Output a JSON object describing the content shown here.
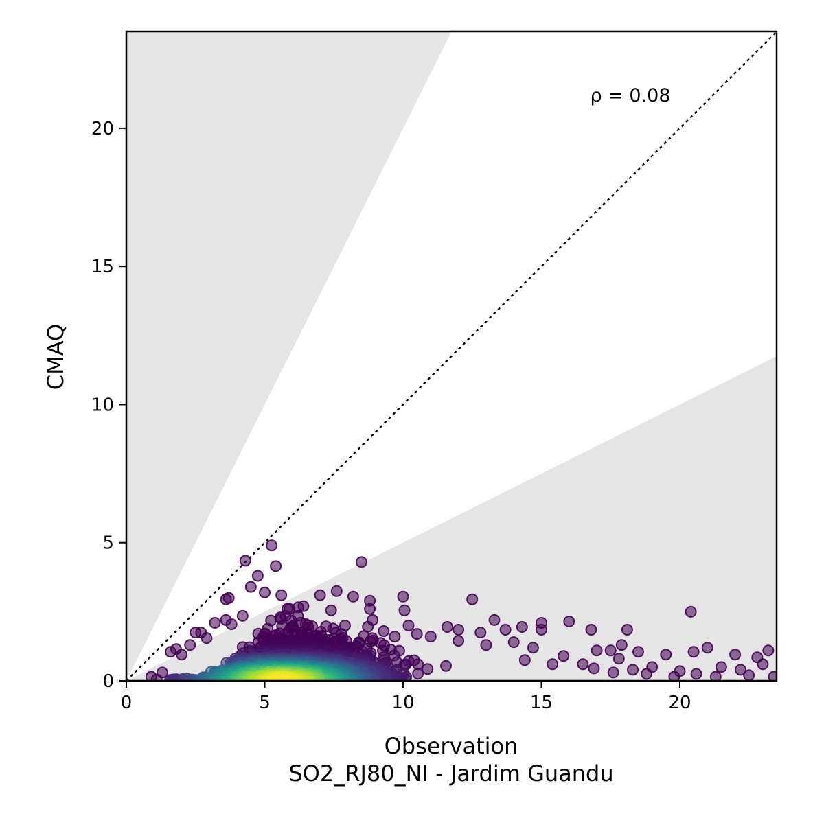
{
  "chart_data": {
    "type": "scatter",
    "xlabel": "Observation",
    "ylabel": "CMAQ",
    "subtitle": "SO2_RJ80_NI - Jardim Guandu",
    "annotation": "ρ = 0.08",
    "xlim": [
      0,
      23.5
    ],
    "ylim": [
      0,
      23.5
    ],
    "x_ticks": [
      0,
      5,
      10,
      15,
      20
    ],
    "y_ticks": [
      0,
      5,
      10,
      15,
      20
    ],
    "reference_line": {
      "style": "dotted",
      "slope": 1,
      "color": "#000000"
    },
    "shaded_regions": [
      {
        "description": "above factor-of-2 line",
        "slope": 2,
        "side": "above",
        "color": "#e5e5e5"
      },
      {
        "description": "below factor-of-0.5 line",
        "slope": 0.5,
        "side": "below",
        "color": "#e5e5e5"
      }
    ],
    "colormap": "viridis",
    "grid": false,
    "legend": "none",
    "points": [
      {
        "x": 4.3,
        "y": 4.35
      },
      {
        "x": 5.25,
        "y": 4.9
      },
      {
        "x": 5.4,
        "y": 4.15
      },
      {
        "x": 4.75,
        "y": 3.8
      },
      {
        "x": 8.5,
        "y": 4.3
      },
      {
        "x": 4.5,
        "y": 3.4
      },
      {
        "x": 5.0,
        "y": 3.2
      },
      {
        "x": 5.6,
        "y": 3.1
      },
      {
        "x": 3.6,
        "y": 2.95
      },
      {
        "x": 3.7,
        "y": 3.0
      },
      {
        "x": 7.0,
        "y": 3.1
      },
      {
        "x": 7.6,
        "y": 3.25
      },
      {
        "x": 8.2,
        "y": 3.05
      },
      {
        "x": 8.8,
        "y": 2.9
      },
      {
        "x": 10.0,
        "y": 3.05
      },
      {
        "x": 12.5,
        "y": 2.95
      },
      {
        "x": 10.05,
        "y": 2.55
      },
      {
        "x": 8.8,
        "y": 2.6
      },
      {
        "x": 6.4,
        "y": 2.7
      },
      {
        "x": 7.4,
        "y": 2.55
      },
      {
        "x": 3.2,
        "y": 2.1
      },
      {
        "x": 3.6,
        "y": 2.2
      },
      {
        "x": 2.7,
        "y": 1.75
      },
      {
        "x": 2.5,
        "y": 1.75
      },
      {
        "x": 1.8,
        "y": 1.15
      },
      {
        "x": 1.6,
        "y": 1.05
      },
      {
        "x": 9.3,
        "y": 1.8
      },
      {
        "x": 10.2,
        "y": 2.0
      },
      {
        "x": 11.6,
        "y": 1.95
      },
      {
        "x": 12.0,
        "y": 1.85
      },
      {
        "x": 12.8,
        "y": 1.75
      },
      {
        "x": 13.3,
        "y": 2.2
      },
      {
        "x": 13.7,
        "y": 1.85
      },
      {
        "x": 14.3,
        "y": 1.95
      },
      {
        "x": 15.0,
        "y": 2.1
      },
      {
        "x": 15.0,
        "y": 1.85
      },
      {
        "x": 16.0,
        "y": 2.15
      },
      {
        "x": 16.8,
        "y": 1.85
      },
      {
        "x": 18.1,
        "y": 1.85
      },
      {
        "x": 17.9,
        "y": 1.3
      },
      {
        "x": 18.5,
        "y": 1.05
      },
      {
        "x": 17.0,
        "y": 1.1
      },
      {
        "x": 17.5,
        "y": 1.1
      },
      {
        "x": 17.8,
        "y": 0.8
      },
      {
        "x": 19.5,
        "y": 0.95
      },
      {
        "x": 20.4,
        "y": 2.5
      },
      {
        "x": 20.5,
        "y": 1.05
      },
      {
        "x": 21.0,
        "y": 1.2
      },
      {
        "x": 22.0,
        "y": 0.95
      },
      {
        "x": 22.8,
        "y": 0.85
      },
      {
        "x": 23.2,
        "y": 1.1
      },
      {
        "x": 21.5,
        "y": 0.5
      },
      {
        "x": 22.2,
        "y": 0.4
      },
      {
        "x": 23.0,
        "y": 0.6
      },
      {
        "x": 19.0,
        "y": 0.5
      },
      {
        "x": 20.0,
        "y": 0.35
      },
      {
        "x": 18.3,
        "y": 0.4
      },
      {
        "x": 16.5,
        "y": 0.6
      },
      {
        "x": 15.8,
        "y": 0.9
      },
      {
        "x": 14.7,
        "y": 1.2
      },
      {
        "x": 14.0,
        "y": 1.4
      },
      {
        "x": 13.0,
        "y": 1.3
      },
      {
        "x": 12.0,
        "y": 1.45
      },
      {
        "x": 11.0,
        "y": 1.6
      },
      {
        "x": 10.5,
        "y": 1.7
      },
      {
        "x": 9.7,
        "y": 1.6
      },
      {
        "x": 8.9,
        "y": 2.2
      },
      {
        "x": 7.9,
        "y": 2.0
      },
      {
        "x": 6.2,
        "y": 2.35
      },
      {
        "x": 5.9,
        "y": 2.6
      },
      {
        "x": 4.2,
        "y": 2.35
      },
      {
        "x": 3.8,
        "y": 2.05
      },
      {
        "x": 2.9,
        "y": 1.55
      },
      {
        "x": 2.3,
        "y": 1.3
      },
      {
        "x": 2.0,
        "y": 0.95
      },
      {
        "x": 1.3,
        "y": 0.3
      },
      {
        "x": 0.9,
        "y": 0.15
      },
      {
        "x": 1.1,
        "y": 0.05
      },
      {
        "x": 23.4,
        "y": 0.15
      },
      {
        "x": 22.5,
        "y": 0.2
      },
      {
        "x": 21.3,
        "y": 0.15
      },
      {
        "x": 20.6,
        "y": 0.25
      },
      {
        "x": 19.8,
        "y": 0.15
      },
      {
        "x": 18.8,
        "y": 0.25
      },
      {
        "x": 17.6,
        "y": 0.3
      },
      {
        "x": 16.9,
        "y": 0.45
      },
      {
        "x": 15.4,
        "y": 0.6
      },
      {
        "x": 14.4,
        "y": 0.75
      }
    ]
  }
}
